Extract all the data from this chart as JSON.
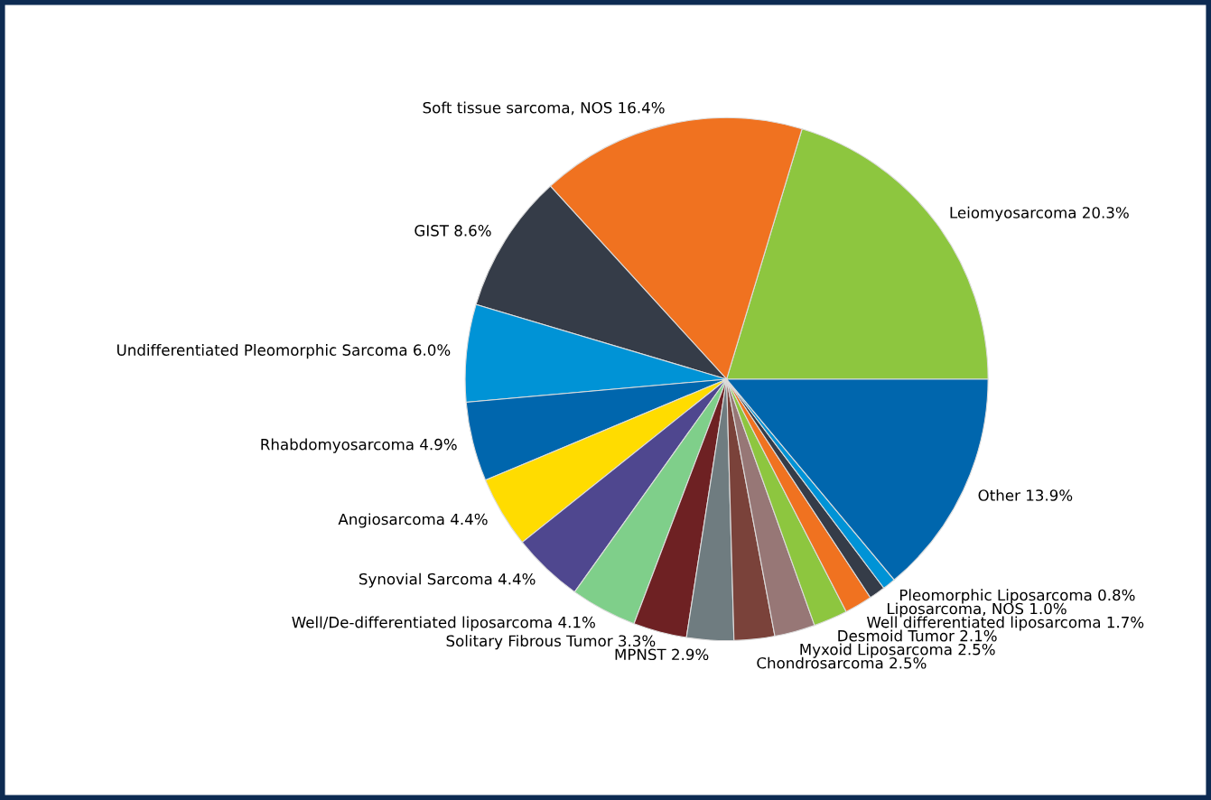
{
  "chart_data": {
    "type": "pie",
    "categories": [
      "Leiomyosarcoma",
      "Soft tissue sarcoma, NOS",
      "GIST",
      "Undifferentiated Pleomorphic Sarcoma",
      "Rhabdomyosarcoma",
      "Angiosarcoma",
      "Synovial Sarcoma",
      "Well/De-differentiated liposarcoma",
      "Solitary Fibrous Tumor",
      "MPNST",
      "Chondrosarcoma",
      "Myxoid Liposarcoma",
      "Desmoid Tumor",
      "Well differentiated liposarcoma",
      "Liposarcoma, NOS",
      "Pleomorphic Liposarcoma",
      "Other"
    ],
    "values": [
      20.3,
      16.4,
      8.6,
      6.0,
      4.9,
      4.4,
      4.4,
      4.1,
      3.3,
      2.9,
      2.5,
      2.5,
      2.1,
      1.7,
      1.0,
      0.8,
      13.9
    ],
    "value_labels": [
      "20.3%",
      "16.4%",
      "8.6%",
      "6.0%",
      "4.9%",
      "4.4%",
      "4.4%",
      "4.1%",
      "3.3%",
      "2.9%",
      "2.5%",
      "2.5%",
      "2.1%",
      "1.7%",
      "1.0%",
      "0.8%",
      "13.9%"
    ],
    "colors": [
      "#8dc63f",
      "#f07220",
      "#353c48",
      "#0093d6",
      "#0066ad",
      "#ffdc00",
      "#4f478f",
      "#7fcf8a",
      "#6e2123",
      "#6f7c80",
      "#7a423a",
      "#977776",
      "#8dc63f",
      "#f07220",
      "#353c48",
      "#0093d6",
      "#0066ad"
    ]
  }
}
